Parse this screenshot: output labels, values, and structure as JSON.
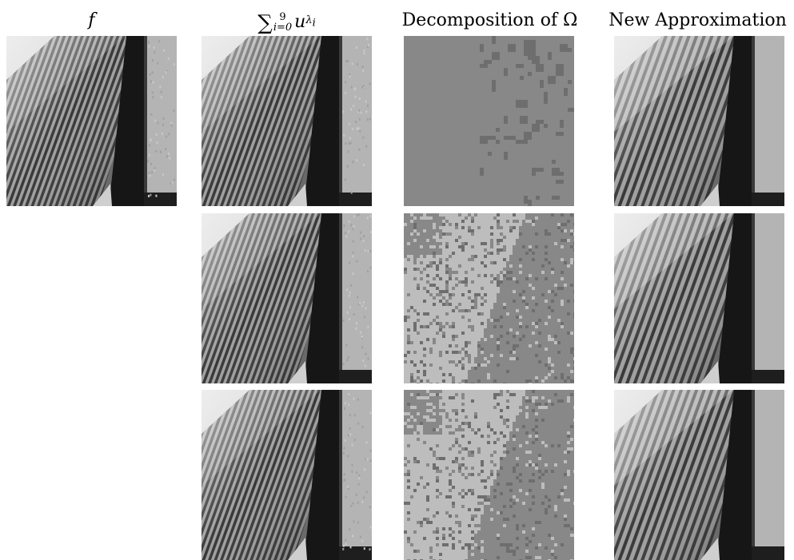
{
  "headers": {
    "col1": "f",
    "col2_sum_symbol": "∑",
    "col2_upper": "9",
    "col2_lower": "i=0",
    "col2_term": "u",
    "col2_sub": "λ",
    "col2_subsub": "i",
    "col3": "Decomposition of Ω",
    "col4": "New Approximation"
  },
  "rows": 3,
  "columns": [
    "f",
    "sum",
    "decomposition",
    "approximation"
  ],
  "colors": {
    "background": "#ffffff",
    "decomp_dark": "#6e6e6e",
    "decomp_mid": "#888888",
    "decomp_light": "#bdbdbd",
    "stripe_light": "#d8d8d8",
    "stripe_dark": "#2e2e2e",
    "pillar": "#161616",
    "right_panel": "#b4b4b4"
  }
}
